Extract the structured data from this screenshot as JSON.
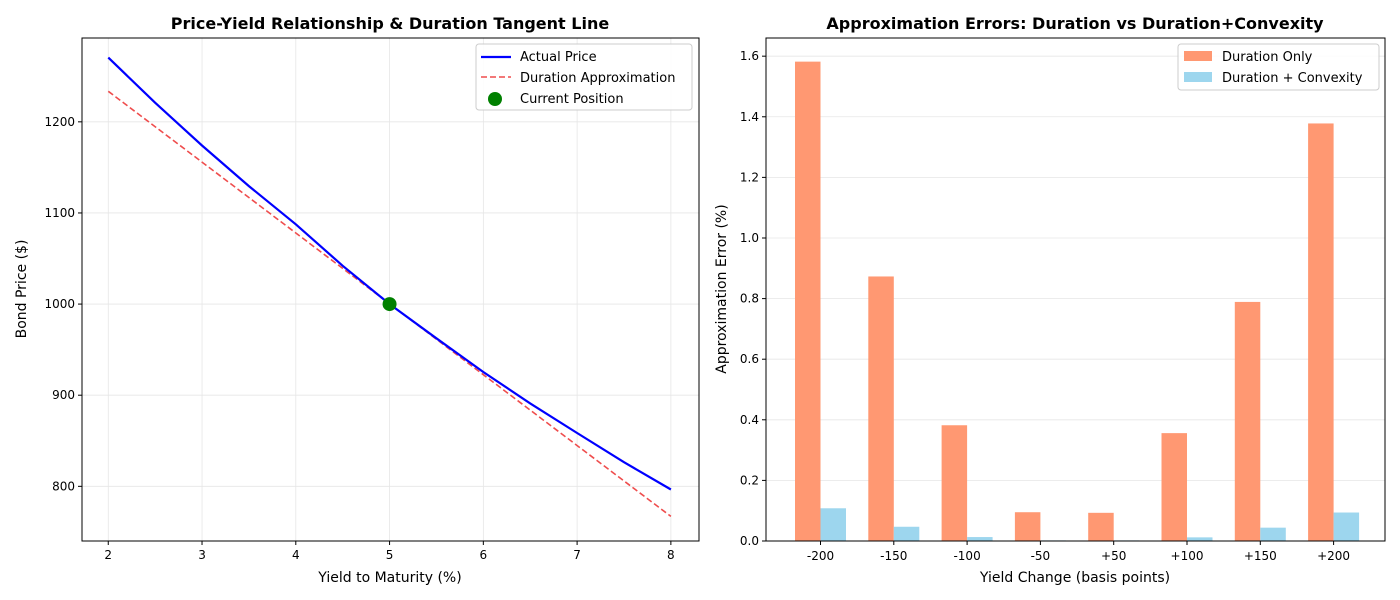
{
  "chart_data": [
    {
      "type": "line",
      "title": "Price-Yield Relationship & Duration Tangent Line",
      "xlabel": "Yield to Maturity (%)",
      "ylabel": "Bond Price ($)",
      "xlim": [
        1.72,
        8.3
      ],
      "ylim": [
        740,
        1292
      ],
      "xticks": [
        2,
        3,
        4,
        5,
        6,
        7,
        8
      ],
      "yticks": [
        800,
        900,
        1000,
        1100,
        1200
      ],
      "grid": true,
      "legend_position": "top-right",
      "series": [
        {
          "name": "Actual Price",
          "style": "solid",
          "color": "#0000ff",
          "points": [
            [
              2.0,
              1270.5
            ],
            [
              2.5,
              1221.0
            ],
            [
              3.0,
              1174.0
            ],
            [
              3.5,
              1129.5
            ],
            [
              4.0,
              1087.5
            ],
            [
              4.5,
              1042.0
            ],
            [
              5.0,
              1000.0
            ],
            [
              5.5,
              962.5
            ],
            [
              6.0,
              925.5
            ],
            [
              6.5,
              891.0
            ],
            [
              7.0,
              858.5
            ],
            [
              7.5,
              826.5
            ],
            [
              8.0,
              796.5
            ]
          ]
        },
        {
          "name": "Duration Approximation",
          "style": "dashed",
          "color": "#ef4d4d",
          "points": [
            [
              2.0,
              1233.5
            ],
            [
              8.0,
              767.0
            ]
          ]
        },
        {
          "name": "Current Position",
          "style": "marker",
          "color": "#008000",
          "points": [
            [
              5.0,
              1000.0
            ]
          ]
        }
      ]
    },
    {
      "type": "bar",
      "title": "Approximation Errors: Duration vs Duration+Convexity",
      "xlabel": "Yield Change (basis points)",
      "ylabel": "Approximation Error (%)",
      "ylim": [
        0,
        1.66
      ],
      "yticks": [
        "0.0",
        "0.2",
        "0.4",
        "0.6",
        "0.8",
        "1.0",
        "1.2",
        "1.4",
        "1.6"
      ],
      "grid": true,
      "legend_position": "top-right",
      "categories": [
        "-200",
        "-150",
        "-100",
        "-50",
        "+50",
        "+100",
        "+150",
        "+200"
      ],
      "series": [
        {
          "name": "Duration Only",
          "color": "#ff9872",
          "values": [
            1.582,
            0.873,
            0.382,
            0.095,
            0.093,
            0.356,
            0.789,
            1.378
          ]
        },
        {
          "name": "Duration + Convexity",
          "color": "#9dd6ee",
          "values": [
            0.108,
            0.047,
            0.013,
            0.002,
            0.002,
            0.012,
            0.044,
            0.094
          ]
        }
      ]
    }
  ]
}
